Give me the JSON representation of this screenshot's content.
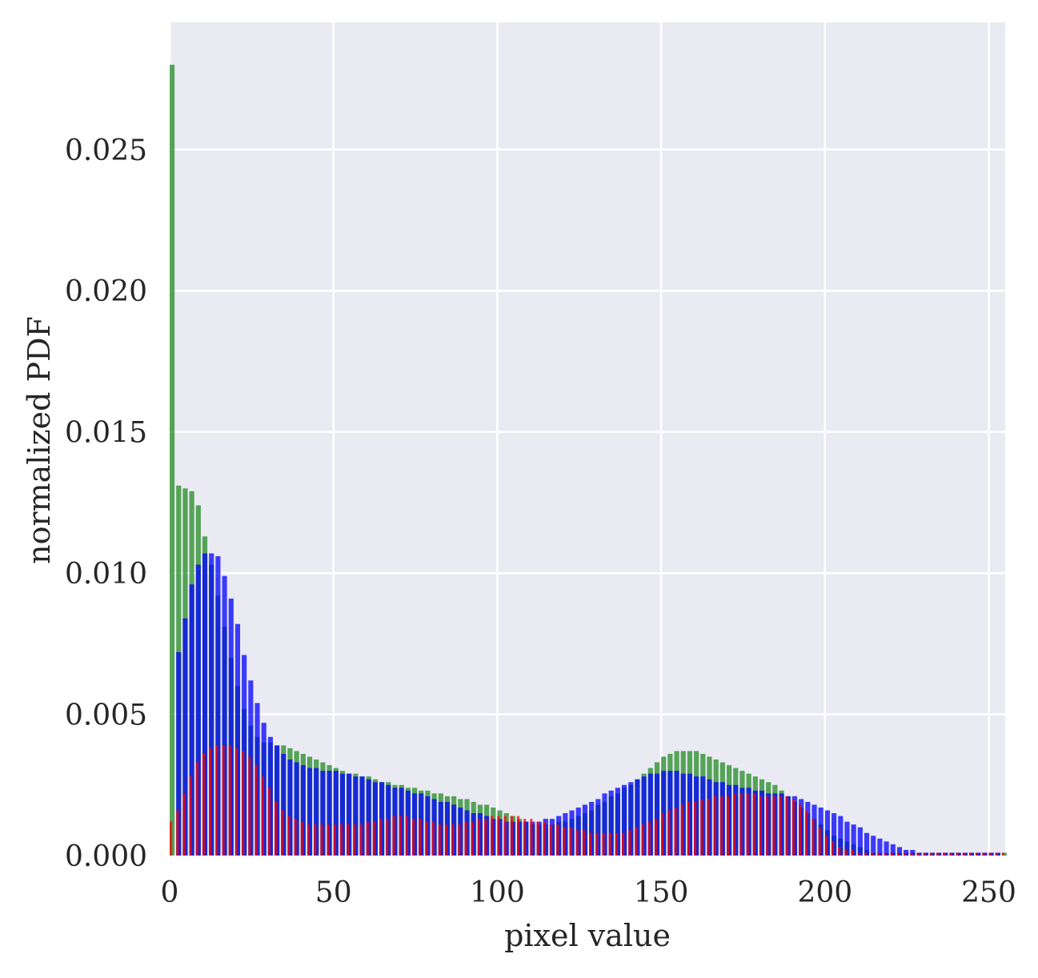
{
  "chart_data": {
    "type": "bar",
    "title": "",
    "xlabel": "pixel value",
    "ylabel": "normalized PDF",
    "xlim": [
      0,
      255
    ],
    "ylim": [
      0,
      0.0295
    ],
    "xticks": [
      0,
      50,
      100,
      150,
      200,
      250
    ],
    "xtick_labels": [
      "0",
      "50",
      "100",
      "150",
      "200",
      "250"
    ],
    "yticks": [
      0,
      0.005,
      0.01,
      0.015,
      0.02,
      0.025
    ],
    "ytick_labels": [
      "0.000",
      "0.005",
      "0.010",
      "0.015",
      "0.020",
      "0.025"
    ],
    "grid": true,
    "background": "#eaeaf2",
    "grid_color": "#ffffff",
    "series": [
      {
        "color": "#228b22",
        "bin_width": 2,
        "x": [
          0,
          2,
          4,
          6,
          8,
          10,
          12,
          14,
          16,
          18,
          20,
          22,
          24,
          26,
          28,
          30,
          32,
          34,
          36,
          38,
          40,
          42,
          44,
          46,
          48,
          50,
          52,
          54,
          56,
          58,
          60,
          62,
          64,
          66,
          68,
          70,
          72,
          74,
          76,
          78,
          80,
          82,
          84,
          86,
          88,
          90,
          92,
          94,
          96,
          98,
          100,
          102,
          104,
          106,
          108,
          110,
          112,
          114,
          116,
          118,
          120,
          122,
          124,
          126,
          128,
          130,
          132,
          134,
          136,
          138,
          140,
          142,
          144,
          146,
          148,
          150,
          152,
          154,
          156,
          158,
          160,
          162,
          164,
          166,
          168,
          170,
          172,
          174,
          176,
          178,
          180,
          182,
          184,
          186,
          188,
          190,
          192,
          194,
          196,
          198,
          200,
          202,
          204,
          206,
          208,
          210,
          212,
          214,
          216,
          218,
          220,
          222,
          224,
          226,
          228,
          230,
          232,
          234,
          236,
          238,
          240,
          242,
          244,
          246,
          248,
          250,
          252,
          254
        ],
        "values": [
          0.028,
          0.0131,
          0.013,
          0.0129,
          0.0124,
          0.0113,
          0.0103,
          0.0092,
          0.0081,
          0.007,
          0.006,
          0.0052,
          0.0046,
          0.0042,
          0.004,
          0.004,
          0.0039,
          0.0039,
          0.0038,
          0.0037,
          0.0036,
          0.0035,
          0.0034,
          0.0033,
          0.0032,
          0.0031,
          0.003,
          0.0029,
          0.0029,
          0.0028,
          0.0028,
          0.0027,
          0.0026,
          0.0026,
          0.0025,
          0.0025,
          0.0024,
          0.0024,
          0.0023,
          0.0023,
          0.0022,
          0.0022,
          0.0021,
          0.0021,
          0.002,
          0.002,
          0.0019,
          0.0018,
          0.0018,
          0.0017,
          0.0016,
          0.0015,
          0.0014,
          0.0013,
          0.0012,
          0.0011,
          0.0011,
          0.0011,
          0.0011,
          0.0012,
          0.0012,
          0.0013,
          0.0014,
          0.0015,
          0.0016,
          0.0018,
          0.0019,
          0.0021,
          0.0022,
          0.0024,
          0.0025,
          0.0027,
          0.0029,
          0.0031,
          0.0033,
          0.0035,
          0.0036,
          0.0037,
          0.0037,
          0.0037,
          0.0037,
          0.0036,
          0.0035,
          0.0034,
          0.0033,
          0.0032,
          0.0031,
          0.003,
          0.0029,
          0.0028,
          0.0027,
          0.0026,
          0.0025,
          0.0023,
          0.0021,
          0.0019,
          0.0017,
          0.0015,
          0.0013,
          0.0011,
          0.0009,
          0.0007,
          0.0006,
          0.0005,
          0.0004,
          0.0003,
          0.0002,
          0.0001,
          0.0001,
          0.0001,
          0.0001,
          0.0001,
          0.0001,
          0.0001,
          0.0001,
          0.0001,
          0.0001,
          0.0001,
          0.0001,
          0.0001,
          0.0001,
          0.0001,
          0.0001,
          0.0001,
          0.0001,
          0.0001,
          0.0001,
          0.0001
        ]
      },
      {
        "color": "#0000ff",
        "bin_width": 2,
        "x": [
          2,
          4,
          6,
          8,
          10,
          12,
          14,
          16,
          18,
          20,
          22,
          24,
          26,
          28,
          30,
          32,
          34,
          36,
          38,
          40,
          42,
          44,
          46,
          48,
          50,
          52,
          54,
          56,
          58,
          60,
          62,
          64,
          66,
          68,
          70,
          72,
          74,
          76,
          78,
          80,
          82,
          84,
          86,
          88,
          90,
          92,
          94,
          96,
          98,
          100,
          102,
          104,
          106,
          108,
          110,
          112,
          114,
          116,
          118,
          120,
          122,
          124,
          126,
          128,
          130,
          132,
          134,
          136,
          138,
          140,
          142,
          144,
          146,
          148,
          150,
          152,
          154,
          156,
          158,
          160,
          162,
          164,
          166,
          168,
          170,
          172,
          174,
          176,
          178,
          180,
          182,
          184,
          186,
          188,
          190,
          192,
          194,
          196,
          198,
          200,
          202,
          204,
          206,
          208,
          210,
          212,
          214,
          216,
          218,
          220,
          222,
          224,
          226,
          228,
          230,
          232,
          234,
          236,
          238,
          240,
          242,
          244,
          246,
          248,
          250,
          252
        ],
        "values": [
          0.0072,
          0.0084,
          0.0096,
          0.0103,
          0.0107,
          0.0107,
          0.0106,
          0.0099,
          0.0091,
          0.0082,
          0.0071,
          0.0062,
          0.0054,
          0.0047,
          0.0042,
          0.0039,
          0.0036,
          0.0034,
          0.0033,
          0.0032,
          0.0031,
          0.0031,
          0.003,
          0.003,
          0.003,
          0.0029,
          0.0029,
          0.0028,
          0.0028,
          0.0027,
          0.0026,
          0.0026,
          0.0025,
          0.0024,
          0.0024,
          0.0023,
          0.0022,
          0.0022,
          0.0021,
          0.002,
          0.0019,
          0.0019,
          0.0018,
          0.0017,
          0.0016,
          0.0015,
          0.0015,
          0.0014,
          0.0013,
          0.0013,
          0.0012,
          0.0012,
          0.0012,
          0.0012,
          0.0012,
          0.0012,
          0.0013,
          0.0013,
          0.0014,
          0.0015,
          0.0016,
          0.0017,
          0.0018,
          0.0019,
          0.002,
          0.0022,
          0.0023,
          0.0024,
          0.0025,
          0.0026,
          0.0027,
          0.0028,
          0.0029,
          0.0029,
          0.003,
          0.003,
          0.003,
          0.0029,
          0.0029,
          0.0028,
          0.0028,
          0.0027,
          0.0026,
          0.0026,
          0.0025,
          0.0025,
          0.0024,
          0.0024,
          0.0023,
          0.0023,
          0.0022,
          0.0022,
          0.0022,
          0.0021,
          0.0021,
          0.002,
          0.0019,
          0.0018,
          0.0017,
          0.0016,
          0.0015,
          0.0014,
          0.0012,
          0.0011,
          0.001,
          0.0008,
          0.0007,
          0.0006,
          0.0005,
          0.0004,
          0.0003,
          0.0002,
          0.0002,
          0.0001,
          0.0001,
          0.0001,
          0.0001,
          0.0001,
          0.0001,
          0.0001,
          0.0001,
          0.0001,
          0.0001,
          0.0001,
          0.0001,
          0.0001
        ]
      },
      {
        "color": "#ff0000",
        "bin_width": 1,
        "x_start": 0,
        "x_step": 2,
        "values": [
          0.0012,
          0.0016,
          0.0022,
          0.0028,
          0.0033,
          0.0036,
          0.0038,
          0.0039,
          0.0039,
          0.0039,
          0.0038,
          0.0037,
          0.0035,
          0.0032,
          0.0028,
          0.0024,
          0.0019,
          0.0016,
          0.0014,
          0.0013,
          0.0012,
          0.0011,
          0.0011,
          0.0011,
          0.0011,
          0.0011,
          0.0011,
          0.0011,
          0.0011,
          0.0011,
          0.0012,
          0.0012,
          0.0013,
          0.0013,
          0.0014,
          0.0014,
          0.0014,
          0.0013,
          0.0013,
          0.0012,
          0.0012,
          0.0011,
          0.0011,
          0.0011,
          0.0011,
          0.0012,
          0.0012,
          0.0013,
          0.0013,
          0.0014,
          0.0014,
          0.0014,
          0.0014,
          0.0014,
          0.0013,
          0.0013,
          0.0012,
          0.0012,
          0.0011,
          0.0011,
          0.001,
          0.001,
          0.0009,
          0.0009,
          0.0008,
          0.0008,
          0.0008,
          0.0008,
          0.0008,
          0.0008,
          0.0009,
          0.001,
          0.0011,
          0.0012,
          0.0013,
          0.0015,
          0.0016,
          0.0017,
          0.0018,
          0.0019,
          0.0019,
          0.002,
          0.002,
          0.0021,
          0.0021,
          0.0021,
          0.0022,
          0.0022,
          0.0022,
          0.0022,
          0.0021,
          0.0021,
          0.0021,
          0.0021,
          0.0021,
          0.002,
          0.0018,
          0.0016,
          0.0013,
          0.001,
          0.0007,
          0.0005,
          0.0003,
          0.0002,
          0.0002,
          0.0001,
          0.0001,
          0.0001,
          0.0001,
          0.0001,
          0.0001,
          0.0001,
          0.0001,
          0.0001,
          0.0001,
          0.0001,
          0.0001,
          0.0001,
          0.0001,
          0.0001,
          0.0001,
          0.0001,
          0.0001,
          0.0001,
          0.0001,
          0.0001,
          0.0001,
          0.0001
        ]
      }
    ]
  }
}
